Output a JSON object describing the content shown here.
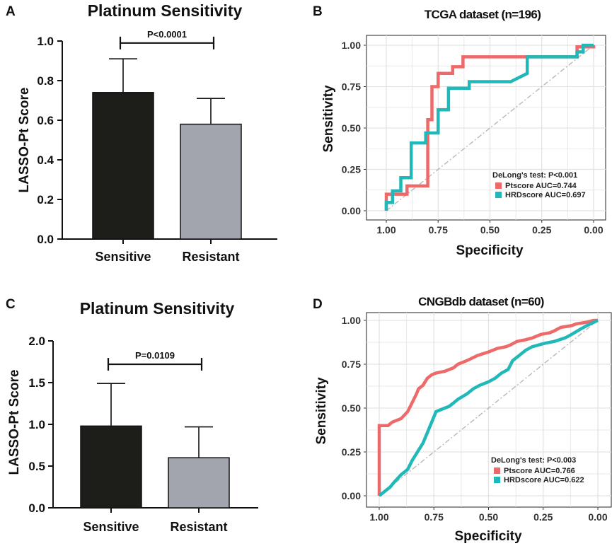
{
  "figure": {
    "panels": [
      {
        "letter": "A"
      },
      {
        "letter": "B"
      },
      {
        "letter": "C"
      },
      {
        "letter": "D"
      }
    ]
  },
  "colors": {
    "sensitive_bar": "#1d1d1a",
    "resistant_bar": "#a3a5ae",
    "ptscore": "#ee6a6a",
    "hrdscore": "#20b8b8",
    "diagonal": "#b8b8b8",
    "grid": "#e3e3e3"
  },
  "chart_data": [
    {
      "id": "A",
      "type": "bar",
      "title": "Platinum Sensitivity",
      "ylabel": "LASSO-Pt Score",
      "xlabel": "",
      "categories": [
        "Sensitive",
        "Resistant"
      ],
      "values": [
        0.74,
        0.58
      ],
      "error_upper": [
        0.91,
        0.71
      ],
      "ylim": [
        0,
        1.0
      ],
      "yticks": [
        0.0,
        0.2,
        0.4,
        0.6,
        0.8,
        1.0
      ],
      "ytick_labels": [
        "0.0",
        "0.2",
        "0.4",
        "0.6",
        "0.8",
        "1.0"
      ],
      "significance": {
        "text": "P<0.0001",
        "level": 0.99
      }
    },
    {
      "id": "B",
      "type": "line",
      "title": "TCGA dataset (n=196)",
      "xlabel": "Specificity",
      "ylabel": "Sensitivity",
      "xlim": [
        1.0,
        0.0
      ],
      "ylim": [
        0.0,
        1.0
      ],
      "xticks": [
        1.0,
        0.75,
        0.5,
        0.25,
        0.0
      ],
      "xtick_labels": [
        "1.00",
        "0.75",
        "0.50",
        "0.25",
        "0.00"
      ],
      "yticks": [
        0.0,
        0.25,
        0.5,
        0.75,
        1.0
      ],
      "ytick_labels": [
        "0.00",
        "0.25",
        "0.50",
        "0.75",
        "1.00"
      ],
      "grid": true,
      "annotation": "DeLong's test: P<0.001",
      "legend_position": "bottom-right",
      "series": [
        {
          "name": "Ptscore AUC=0.744",
          "color_key": "ptscore",
          "x": [
            1.0,
            1.0,
            0.9,
            0.9,
            0.8,
            0.8,
            0.78,
            0.78,
            0.75,
            0.75,
            0.68,
            0.68,
            0.63,
            0.63,
            0.08,
            0.08,
            0.0,
            0.0
          ],
          "y": [
            0.0,
            0.1,
            0.1,
            0.15,
            0.15,
            0.55,
            0.55,
            0.75,
            0.75,
            0.83,
            0.83,
            0.87,
            0.87,
            0.93,
            0.93,
            0.99,
            0.99,
            1.0
          ]
        },
        {
          "name": "HRDscore AUC=0.697",
          "color_key": "hrdscore",
          "x": [
            1.0,
            1.0,
            0.97,
            0.97,
            0.93,
            0.93,
            0.88,
            0.88,
            0.81,
            0.81,
            0.75,
            0.75,
            0.7,
            0.7,
            0.6,
            0.6,
            0.4,
            0.32,
            0.32,
            0.08,
            0.08,
            0.05,
            0.05,
            0.0
          ],
          "y": [
            0.0,
            0.05,
            0.05,
            0.12,
            0.12,
            0.2,
            0.2,
            0.41,
            0.41,
            0.47,
            0.47,
            0.61,
            0.61,
            0.74,
            0.74,
            0.78,
            0.78,
            0.83,
            0.93,
            0.93,
            0.96,
            0.96,
            1.0,
            1.0
          ]
        }
      ]
    },
    {
      "id": "C",
      "type": "bar",
      "title": "Platinum Sensitivity",
      "ylabel": "LASSO-Pt Score",
      "xlabel": "",
      "categories": [
        "Sensitive",
        "Resistant"
      ],
      "values": [
        0.98,
        0.6
      ],
      "error_upper": [
        1.49,
        0.97
      ],
      "ylim": [
        0,
        2.0
      ],
      "yticks": [
        0.0,
        0.5,
        1.0,
        1.5,
        2.0
      ],
      "ytick_labels": [
        "0.0",
        "0.5",
        "1.0",
        "1.5",
        "2.0"
      ],
      "significance": {
        "text": "P=0.0109",
        "level": 1.72
      }
    },
    {
      "id": "D",
      "type": "line",
      "title": "CNGBdb dataset (n=60)",
      "xlabel": "Specificity",
      "ylabel": "Sensitivity",
      "xlim": [
        1.0,
        0.0
      ],
      "ylim": [
        0.0,
        1.0
      ],
      "xticks": [
        1.0,
        0.75,
        0.5,
        0.25,
        0.0
      ],
      "xtick_labels": [
        "1.00",
        "0.75",
        "0.50",
        "0.25",
        "0.00"
      ],
      "yticks": [
        0.0,
        0.25,
        0.5,
        0.75,
        1.0
      ],
      "ytick_labels": [
        "0.00",
        "0.25",
        "0.50",
        "0.75",
        "1.00"
      ],
      "grid": true,
      "annotation": "DeLong's test: P<0.003",
      "legend_position": "bottom-right",
      "series": [
        {
          "name": "Ptscore AUC=0.766",
          "color_key": "ptscore",
          "x": [
            1.0,
            1.0,
            0.96,
            0.94,
            0.9,
            0.87,
            0.85,
            0.83,
            0.82,
            0.8,
            0.78,
            0.76,
            0.74,
            0.7,
            0.66,
            0.64,
            0.62,
            0.6,
            0.55,
            0.5,
            0.46,
            0.42,
            0.4,
            0.37,
            0.33,
            0.3,
            0.26,
            0.22,
            0.2,
            0.17,
            0.12,
            0.1,
            0.05,
            0.02,
            0.0
          ],
          "y": [
            0.0,
            0.4,
            0.4,
            0.42,
            0.44,
            0.48,
            0.53,
            0.58,
            0.61,
            0.63,
            0.67,
            0.69,
            0.7,
            0.71,
            0.73,
            0.75,
            0.76,
            0.77,
            0.8,
            0.82,
            0.84,
            0.85,
            0.86,
            0.88,
            0.89,
            0.9,
            0.92,
            0.93,
            0.94,
            0.96,
            0.97,
            0.98,
            0.99,
            1.0,
            1.0
          ]
        },
        {
          "name": "HRDscore AUC=0.622",
          "color_key": "hrdscore",
          "x": [
            1.0,
            0.98,
            0.95,
            0.93,
            0.9,
            0.87,
            0.85,
            0.83,
            0.8,
            0.78,
            0.76,
            0.74,
            0.72,
            0.7,
            0.68,
            0.66,
            0.64,
            0.6,
            0.57,
            0.54,
            0.5,
            0.47,
            0.44,
            0.41,
            0.39,
            0.36,
            0.33,
            0.3,
            0.27,
            0.24,
            0.2,
            0.15,
            0.12,
            0.08,
            0.05,
            0.0
          ],
          "y": [
            0.0,
            0.02,
            0.05,
            0.08,
            0.12,
            0.15,
            0.2,
            0.24,
            0.3,
            0.36,
            0.42,
            0.48,
            0.49,
            0.5,
            0.51,
            0.53,
            0.55,
            0.58,
            0.61,
            0.63,
            0.65,
            0.67,
            0.7,
            0.72,
            0.77,
            0.8,
            0.83,
            0.85,
            0.86,
            0.87,
            0.88,
            0.9,
            0.92,
            0.95,
            0.97,
            1.0
          ]
        }
      ]
    }
  ]
}
